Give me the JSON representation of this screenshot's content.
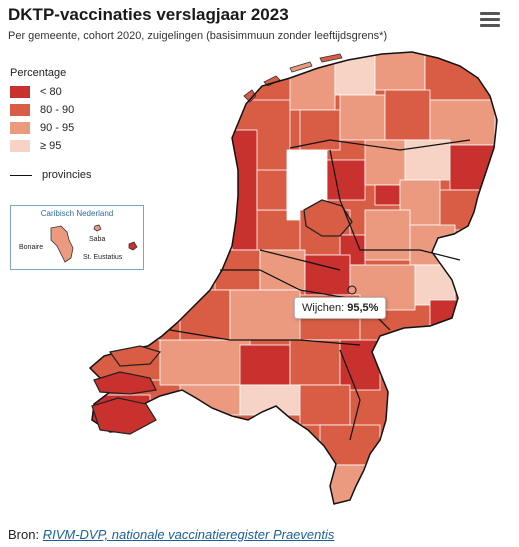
{
  "title": "DKTP-vaccinaties verslagjaar 2023",
  "subtitle": "Per gemeente, cohort 2020, zuigelingen (basisimmuun zonder leeftijdsgrens*)",
  "menu_icon": "hamburger-menu-icon",
  "legend": {
    "title": "Percentage",
    "items": [
      {
        "label": "< 80",
        "color": "#c8312d"
      },
      {
        "label": "80 - 90",
        "color": "#d95d44"
      },
      {
        "label": "90 - 95",
        "color": "#eb9a80"
      },
      {
        "label": "≥ 95",
        "color": "#f6d3c5"
      }
    ],
    "provinces_label": "provincies"
  },
  "inset": {
    "title": "Caribisch Nederland",
    "islands": [
      {
        "label": "Bonaire",
        "color": "#eb9a80"
      },
      {
        "label": "Saba",
        "color": "#eb9a80"
      },
      {
        "label": "St. Eustatius",
        "color": "#c8312d"
      }
    ]
  },
  "tooltip": {
    "municipality": "Wijchen:",
    "value": "95,5%"
  },
  "source": {
    "prefix": "Bron: ",
    "link_text": "RIVM-DVP, nationale vaccinatieregister Praeventis"
  }
}
